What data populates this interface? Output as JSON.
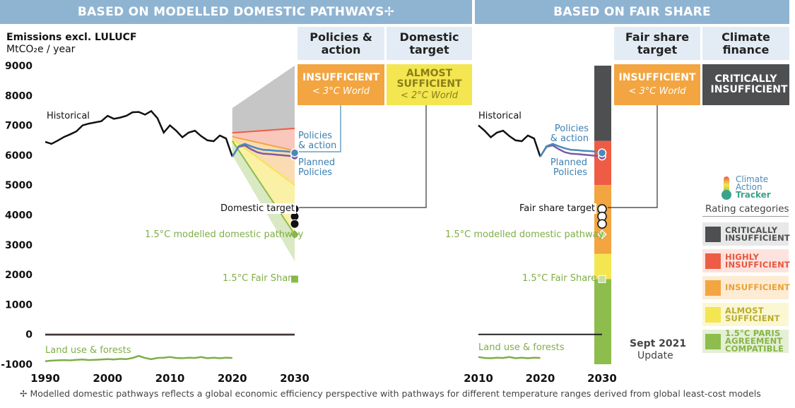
{
  "banners": {
    "left": "BASED ON MODELLED DOMESTIC PATHWAYS✢",
    "right": "BASED ON FAIR SHARE"
  },
  "headers": {
    "policies": "Policies & action",
    "domestic": "Domestic target",
    "fairshare": "Fair share target",
    "finance": "Climate finance"
  },
  "ratings": {
    "policies": {
      "label": "INSUFFICIENT",
      "world": "< 3°C World",
      "color": "#f2a541"
    },
    "domestic": {
      "label": "ALMOST SUFFICIENT",
      "world": "< 2°C World",
      "color": "#f3e651"
    },
    "fairshare": {
      "label": "INSUFFICIENT",
      "world": "< 3°C World",
      "color": "#f2a541"
    },
    "finance": {
      "label": "CRITICALLY INSUFFICIENT",
      "color": "#4d4f51"
    }
  },
  "y_axis": {
    "title": "Emissions excl. LULUCF",
    "unit": "MtCO₂e / year"
  },
  "labels": {
    "historical": "Historical",
    "policies_action": "Policies & action",
    "planned_policies": "Planned Policies",
    "domestic_target": "Domestic target",
    "fair_share_target": "Fair share target",
    "modelled_pathway": "1.5°C modelled domestic pathway",
    "fair_share_15": "1.5°C Fair Share",
    "land_use": "Land use & forests"
  },
  "logo": {
    "line1": "Climate",
    "line2": "Action",
    "line3": "Tracker"
  },
  "update": {
    "date": "Sept 2021",
    "label": "Update"
  },
  "categories_title": "Rating categories",
  "categories": [
    {
      "label": "CRITICALLY INSUFFICIENT",
      "color": "#4d4f51",
      "bg": "#e8e8e8",
      "text": "#4d4f51"
    },
    {
      "label": "HIGHLY INSUFFICIENT",
      "color": "#ee5c45",
      "bg": "#fde3de",
      "text": "#e9553e"
    },
    {
      "label": "INSUFFICIENT",
      "color": "#f2a541",
      "bg": "#fdebd3",
      "text": "#eaa134"
    },
    {
      "label": "ALMOST SUFFICIENT",
      "color": "#f3e651",
      "bg": "#fbf7d3",
      "text": "#b9ad2b"
    },
    {
      "label": "1.5°C PARIS AGREEMENT COMPATIBLE",
      "color": "#8dbd4c",
      "bg": "#e4efd5",
      "text": "#86b546"
    }
  ],
  "footnote": "✢  Modelled domestic pathways reflects a global economic efficiency perspective with pathways for different temperature ranges derived from global least-cost models",
  "chart_data": [
    {
      "type": "line",
      "ylim": [
        -1000,
        9000
      ],
      "yticks": [
        -1000,
        0,
        1000,
        2000,
        3000,
        4000,
        5000,
        6000,
        7000,
        8000,
        9000
      ],
      "xticks": [
        1990,
        2000,
        2010,
        2020,
        2030
      ],
      "historical": {
        "x": [
          1990,
          1991,
          1992,
          1993,
          1994,
          1995,
          1996,
          1997,
          1998,
          1999,
          2000,
          2001,
          2002,
          2003,
          2004,
          2005,
          2006,
          2007,
          2008,
          2009,
          2010,
          2011,
          2012,
          2013,
          2014,
          2015,
          2016,
          2017,
          2018,
          2019,
          2020
        ],
        "y": [
          6450,
          6380,
          6490,
          6610,
          6700,
          6800,
          7000,
          7060,
          7100,
          7140,
          7320,
          7220,
          7260,
          7320,
          7440,
          7450,
          7360,
          7480,
          7240,
          6760,
          7000,
          6820,
          6600,
          6760,
          6820,
          6640,
          6500,
          6470,
          6660,
          6560,
          5950
        ]
      },
      "policies_action": {
        "x": [
          2020,
          2021,
          2022,
          2023,
          2024,
          2025,
          2026,
          2027,
          2028,
          2029,
          2030
        ],
        "y": [
          5950,
          6300,
          6380,
          6300,
          6230,
          6180,
          6170,
          6150,
          6140,
          6120,
          6080
        ]
      },
      "planned_policies": {
        "x": [
          2020,
          2021,
          2022,
          2023,
          2024,
          2025,
          2026,
          2027,
          2028,
          2029,
          2030
        ],
        "y": [
          5950,
          6280,
          6330,
          6200,
          6100,
          6050,
          6040,
          6020,
          6000,
          5980,
          5960
        ]
      },
      "bands": {
        "critically_insufficient": {
          "top": [
            7580,
            9000
          ],
          "bottom": [
            6750,
            6900
          ]
        },
        "highly_insufficient": {
          "top": [
            6750,
            6900
          ],
          "bottom": [
            6620,
            6150
          ]
        },
        "insufficient": {
          "top": [
            6620,
            6150
          ],
          "bottom": [
            6550,
            5000
          ]
        },
        "almost_sufficient": {
          "top": [
            6550,
            5000
          ],
          "bottom": [
            6480,
            3350
          ]
        },
        "paris_compatible": {
          "top": [
            6480,
            3350
          ],
          "bottom": [
            6000,
            2450
          ]
        },
        "x": [
          2020,
          2030
        ]
      },
      "domestic_target": [
        4200,
        3950,
        3700
      ],
      "modelled_pathway_15": 3350,
      "fair_share_15": 1850,
      "land_use": {
        "x": [
          1990,
          1991,
          1992,
          1993,
          1994,
          1995,
          1996,
          1997,
          1998,
          1999,
          2000,
          2001,
          2002,
          2003,
          2004,
          2005,
          2006,
          2007,
          2008,
          2009,
          2010,
          2011,
          2012,
          2013,
          2014,
          2015,
          2016,
          2017,
          2018,
          2019,
          2020
        ],
        "y": [
          -900,
          -880,
          -870,
          -860,
          -870,
          -850,
          -840,
          -860,
          -850,
          -840,
          -830,
          -840,
          -820,
          -830,
          -790,
          -720,
          -790,
          -830,
          -790,
          -780,
          -760,
          -790,
          -800,
          -780,
          -790,
          -760,
          -800,
          -780,
          -800,
          -780,
          -790
        ]
      }
    },
    {
      "type": "line",
      "ylim": [
        -1000,
        9000
      ],
      "xticks": [
        2010,
        2020,
        2030
      ],
      "historical": {
        "x": [
          2010,
          2011,
          2012,
          2013,
          2014,
          2015,
          2016,
          2017,
          2018,
          2019,
          2020
        ],
        "y": [
          7000,
          6820,
          6600,
          6760,
          6820,
          6640,
          6500,
          6470,
          6660,
          6560,
          5950
        ]
      },
      "policies_action": {
        "x": [
          2020,
          2021,
          2022,
          2023,
          2024,
          2025,
          2026,
          2027,
          2028,
          2029,
          2030
        ],
        "y": [
          5950,
          6300,
          6380,
          6300,
          6230,
          6180,
          6170,
          6150,
          6140,
          6120,
          6080
        ]
      },
      "planned_policies": {
        "x": [
          2020,
          2021,
          2022,
          2023,
          2024,
          2025,
          2026,
          2027,
          2028,
          2029,
          2030
        ],
        "y": [
          5950,
          6280,
          6330,
          6200,
          6100,
          6050,
          6040,
          6020,
          6000,
          5980,
          5960
        ]
      },
      "fair_share_bar": [
        {
          "from": 6480,
          "to": 9000,
          "color": "#4d4f51"
        },
        {
          "from": 5000,
          "to": 6480,
          "color": "#ee5c45"
        },
        {
          "from": 2700,
          "to": 5000,
          "color": "#f2a541"
        },
        {
          "from": 1850,
          "to": 2700,
          "color": "#f3e651"
        },
        {
          "from": -1000,
          "to": 1850,
          "color": "#8dbd4c"
        }
      ],
      "fair_share_target": [
        4200,
        3950,
        3700
      ],
      "modelled_pathway_15": 3350,
      "fair_share_15": 1850,
      "land_use": {
        "x": [
          2010,
          2011,
          2012,
          2013,
          2014,
          2015,
          2016,
          2017,
          2018,
          2019,
          2020
        ],
        "y": [
          -760,
          -790,
          -800,
          -780,
          -790,
          -760,
          -800,
          -780,
          -800,
          -780,
          -790
        ]
      }
    }
  ]
}
